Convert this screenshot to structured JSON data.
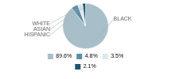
{
  "chart_data": {
    "type": "pie",
    "categories": [
      "BLACK",
      "WHITE",
      "ASIAN",
      "HISPANIC"
    ],
    "values": [
      89.6,
      4.8,
      3.5,
      2.1
    ],
    "value_labels": [
      "89.6%",
      "4.8%",
      "3.5%",
      "2.1%"
    ],
    "colors": [
      "#a8bfc9",
      "#5b8fa8",
      "#dde8ee",
      "#1e5470"
    ],
    "legend": "bottom"
  }
}
